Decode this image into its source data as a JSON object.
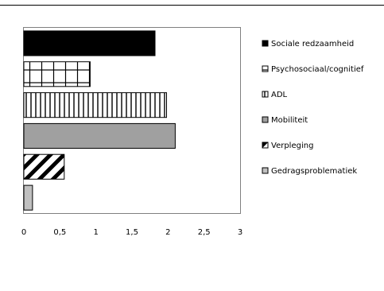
{
  "chart_data": {
    "type": "bar",
    "orientation": "horizontal",
    "categories": [
      "Sociale redzaamheid",
      "Psychosociaal/cognitief",
      "ADL",
      "Mobiliteit",
      "Verpleging",
      "Gedragsproblematiek"
    ],
    "values": [
      1.82,
      0.92,
      1.98,
      2.1,
      0.56,
      0.12
    ],
    "patterns": [
      "solid-black",
      "grid",
      "vertical-lines",
      "solid-gray",
      "diagonal-stripes",
      "solid-light-gray"
    ],
    "xlim": [
      0,
      3
    ],
    "x_ticks": [
      "0",
      "0,5",
      "1",
      "1,5",
      "2",
      "2,5",
      "3"
    ],
    "grid": false,
    "legend_position": "right",
    "colors": {
      "black": "#000000",
      "gray": "#a0a0a0",
      "light_gray": "#c0c0c0",
      "white": "#ffffff"
    }
  }
}
